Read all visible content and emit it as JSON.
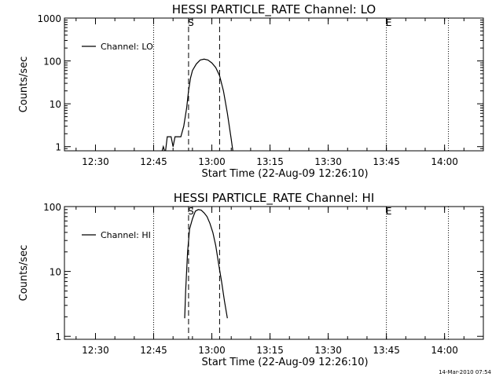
{
  "footer": {
    "timestamp": "14-Mar-2010 07:54"
  },
  "chart_data": [
    {
      "type": "line",
      "title": "HESSI PARTICLE_RATE Channel: LO",
      "xlabel": "Start Time (22-Aug-09 12:26:10)",
      "ylabel": "Counts/sec",
      "yscale": "log",
      "xlim": [
        "12:22",
        "14:10"
      ],
      "ylim": [
        0.8,
        1000
      ],
      "x_ticks": [
        "12:30",
        "12:45",
        "13:00",
        "13:15",
        "13:30",
        "13:45",
        "14:00"
      ],
      "y_ticks": [
        "1",
        "10",
        "100",
        "1000"
      ],
      "legend": {
        "position": "top-left",
        "entries": [
          "Channel: LO"
        ]
      },
      "markers": [
        {
          "label": "",
          "time": "12:45",
          "style": "dotted"
        },
        {
          "label": "S",
          "time": "12:54",
          "style": "dashed"
        },
        {
          "label": "",
          "time": "13:02",
          "style": "dashed"
        },
        {
          "label": "E",
          "time": "13:45",
          "style": "dotted"
        },
        {
          "label": "",
          "time": "14:01",
          "style": "dotted"
        }
      ],
      "series": [
        {
          "name": "Channel: LO",
          "points": [
            [
              "12:47:00",
              0.7
            ],
            [
              "12:47:30",
              1.0
            ],
            [
              "12:48:00",
              0.7
            ],
            [
              "12:48:30",
              1.7
            ],
            [
              "12:49:30",
              1.7
            ],
            [
              "12:50:00",
              1.0
            ],
            [
              "12:50:30",
              1.7
            ],
            [
              "12:52:00",
              1.7
            ],
            [
              "12:52:45",
              3
            ],
            [
              "12:53:30",
              8
            ],
            [
              "12:54:00",
              20
            ],
            [
              "12:54:30",
              40
            ],
            [
              "12:55:00",
              60
            ],
            [
              "12:56:00",
              85
            ],
            [
              "12:57:00",
              105
            ],
            [
              "12:58:00",
              110
            ],
            [
              "12:59:00",
              105
            ],
            [
              "13:00:00",
              90
            ],
            [
              "13:01:00",
              70
            ],
            [
              "13:02:00",
              45
            ],
            [
              "13:03:00",
              20
            ],
            [
              "13:04:00",
              6
            ],
            [
              "13:05:00",
              1.5
            ],
            [
              "13:05:30",
              0.7
            ]
          ]
        }
      ]
    },
    {
      "type": "line",
      "title": "HESSI PARTICLE_RATE Channel: HI",
      "xlabel": "Start Time (22-Aug-09 12:26:10)",
      "ylabel": "Counts/sec",
      "yscale": "log",
      "xlim": [
        "12:22",
        "14:10"
      ],
      "ylim": [
        0.9,
        100
      ],
      "x_ticks": [
        "12:30",
        "12:45",
        "13:00",
        "13:15",
        "13:30",
        "13:45",
        "14:00"
      ],
      "y_ticks": [
        "1",
        "10",
        "100"
      ],
      "legend": {
        "position": "top-left",
        "entries": [
          "Channel: HI"
        ]
      },
      "markers": [
        {
          "label": "",
          "time": "12:45",
          "style": "dotted"
        },
        {
          "label": "S",
          "time": "12:54",
          "style": "dashed"
        },
        {
          "label": "",
          "time": "13:02",
          "style": "dashed"
        },
        {
          "label": "E",
          "time": "13:45",
          "style": "dotted"
        },
        {
          "label": "",
          "time": "14:01",
          "style": "dotted"
        }
      ],
      "series": [
        {
          "name": "Channel: HI",
          "points": [
            [
              "12:53:00",
              1.9
            ],
            [
              "12:53:15",
              5
            ],
            [
              "12:53:45",
              20
            ],
            [
              "12:54:15",
              45
            ],
            [
              "12:55:00",
              65
            ],
            [
              "12:55:45",
              85
            ],
            [
              "12:56:30",
              90
            ],
            [
              "12:57:15",
              88
            ],
            [
              "12:58:00",
              80
            ],
            [
              "12:58:45",
              70
            ],
            [
              "12:59:30",
              55
            ],
            [
              "13:00:15",
              40
            ],
            [
              "13:01:00",
              25
            ],
            [
              "13:01:45",
              13
            ],
            [
              "13:02:30",
              7
            ],
            [
              "13:03:15",
              3.5
            ],
            [
              "13:04:00",
              1.9
            ]
          ]
        }
      ]
    }
  ]
}
